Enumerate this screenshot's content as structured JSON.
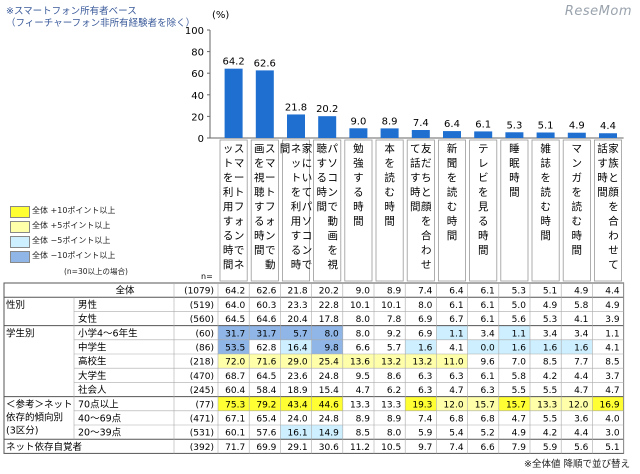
{
  "header": {
    "note": "※スマートフォン所有者ベース\n（フィーチャーフォン非所有経験者を除く）",
    "logo": "ReseMom",
    "footer": "※全体値 降順で並び替え"
  },
  "legend": {
    "items": [
      {
        "label": "全体 +10ポイント以上",
        "color": "#ffff33"
      },
      {
        "label": "全体 +5ポイント以上",
        "color": "#ffffaa"
      },
      {
        "label": "全体 −5ポイント以上",
        "color": "#cdefff"
      },
      {
        "label": "全体 −10ポイント以上",
        "color": "#8fb6e6"
      }
    ],
    "note": "(n=30以上の場合)"
  },
  "table": {
    "n_label": "n=",
    "groups": [
      {
        "label": "",
        "rows": [
          0
        ]
      },
      {
        "label": "性別",
        "rows": [
          1,
          2
        ]
      },
      {
        "label": "学生別",
        "rows": [
          3,
          4,
          5,
          6,
          7
        ]
      },
      {
        "label": "＜参考＞ネット\n依存的傾向別\n(3区分)",
        "rows": [
          8,
          9,
          10
        ]
      },
      {
        "label": "ネット依存自覚者",
        "rows": [
          11
        ]
      }
    ],
    "rows": [
      {
        "label": "全体",
        "n": "(1079)",
        "values": [
          "64.2",
          "62.6",
          "21.8",
          "20.2",
          "9.0",
          "8.9",
          "7.4",
          "6.4",
          "6.1",
          "5.3",
          "5.1",
          "4.9",
          "4.4"
        ]
      },
      {
        "label": "男性",
        "n": "(519)",
        "values": [
          "64.0",
          "60.3",
          "23.3",
          "22.8",
          "10.1",
          "10.1",
          "8.0",
          "6.1",
          "6.1",
          "5.0",
          "4.9",
          "5.8",
          "4.9"
        ]
      },
      {
        "label": "女性",
        "n": "(560)",
        "values": [
          "64.5",
          "64.6",
          "20.4",
          "17.8",
          "8.0",
          "7.8",
          "6.9",
          "6.7",
          "6.1",
          "5.6",
          "5.3",
          "4.1",
          "3.9"
        ]
      },
      {
        "label": "小学4〜6年生",
        "n": "(60)",
        "values": [
          "31.7",
          "31.7",
          "5.7",
          "8.0",
          "8.0",
          "9.2",
          "6.9",
          "1.1",
          "3.4",
          "1.1",
          "3.4",
          "3.4",
          "1.1"
        ]
      },
      {
        "label": "中学生",
        "n": "(86)",
        "values": [
          "53.5",
          "62.8",
          "16.4",
          "9.8",
          "6.6",
          "5.7",
          "1.6",
          "4.1",
          "0.0",
          "1.6",
          "1.6",
          "1.6",
          "4.1"
        ]
      },
      {
        "label": "高校生",
        "n": "(218)",
        "values": [
          "72.0",
          "71.6",
          "29.0",
          "25.4",
          "13.6",
          "13.2",
          "13.2",
          "11.0",
          "9.6",
          "7.0",
          "8.5",
          "7.7",
          "8.5"
        ]
      },
      {
        "label": "大学生",
        "n": "(470)",
        "values": [
          "68.7",
          "64.5",
          "23.6",
          "24.8",
          "9.5",
          "8.6",
          "6.3",
          "6.3",
          "6.1",
          "5.8",
          "4.2",
          "4.4",
          "3.7"
        ]
      },
      {
        "label": "社会人",
        "n": "(245)",
        "values": [
          "60.4",
          "58.4",
          "18.9",
          "15.4",
          "4.7",
          "6.2",
          "6.3",
          "4.7",
          "6.3",
          "5.5",
          "5.5",
          "4.7",
          "4.7"
        ]
      },
      {
        "label": "70点以上",
        "n": "(77)",
        "values": [
          "75.3",
          "79.2",
          "43.4",
          "44.6",
          "13.3",
          "13.3",
          "19.3",
          "12.0",
          "15.7",
          "15.7",
          "13.3",
          "12.0",
          "16.9"
        ]
      },
      {
        "label": "40〜69点",
        "n": "(471)",
        "values": [
          "67.1",
          "65.4",
          "24.0",
          "24.8",
          "8.9",
          "8.9",
          "7.4",
          "6.8",
          "6.8",
          "4.7",
          "5.5",
          "3.6",
          "4.0"
        ]
      },
      {
        "label": "20〜39点",
        "n": "(531)",
        "values": [
          "60.1",
          "57.6",
          "16.1",
          "14.9",
          "8.5",
          "8.0",
          "5.9",
          "5.4",
          "5.2",
          "4.9",
          "4.2",
          "4.4",
          "3.0"
        ]
      },
      {
        "label": "",
        "n": "(392)",
        "values": [
          "71.7",
          "69.9",
          "29.1",
          "30.6",
          "11.2",
          "10.5",
          "9.7",
          "7.4",
          "6.6",
          "7.9",
          "5.9",
          "5.6",
          "5.1"
        ]
      }
    ],
    "highlight": [
      [
        null,
        null,
        null,
        null,
        null,
        null,
        null,
        null,
        null,
        null,
        null,
        null,
        null
      ],
      [
        null,
        null,
        null,
        null,
        null,
        null,
        null,
        null,
        null,
        null,
        null,
        null,
        null
      ],
      [
        null,
        null,
        null,
        null,
        null,
        null,
        null,
        null,
        null,
        null,
        null,
        null,
        null
      ],
      [
        "m10",
        "m10",
        "m10",
        "m10",
        null,
        null,
        null,
        "m5",
        null,
        "m5",
        null,
        null,
        null
      ],
      [
        "m10",
        null,
        "m5",
        "m10",
        null,
        null,
        "m5",
        null,
        "m5",
        "m5",
        "m5",
        "m5",
        null
      ],
      [
        "p5",
        "p5",
        "p5",
        "p5",
        "p5",
        "p5",
        "p5",
        "p5",
        null,
        null,
        null,
        null,
        null
      ],
      [
        null,
        null,
        null,
        null,
        null,
        null,
        null,
        null,
        null,
        null,
        null,
        null,
        null
      ],
      [
        null,
        null,
        null,
        null,
        null,
        null,
        null,
        null,
        null,
        null,
        null,
        null,
        null
      ],
      [
        "p10",
        "p10",
        "p10",
        "p10",
        null,
        null,
        "p10",
        "p5",
        "p5",
        "p10",
        "p5",
        "p5",
        "p10"
      ],
      [
        null,
        null,
        null,
        null,
        null,
        null,
        null,
        null,
        null,
        null,
        null,
        null,
        null
      ],
      [
        null,
        null,
        "m5",
        "m5",
        null,
        null,
        null,
        null,
        null,
        null,
        null,
        null,
        null
      ],
      [
        null,
        null,
        null,
        null,
        null,
        null,
        null,
        null,
        null,
        null,
        null,
        null,
        null
      ]
    ],
    "highlight_colors": {
      "p10": "#ffff33",
      "p5": "#ffffaa",
      "m5": "#cdefff",
      "m10": "#8fb6e6"
    }
  },
  "chart_data": {
    "type": "bar",
    "ylabel": "(%)",
    "ylim": [
      0,
      100
    ],
    "yticks": [
      0,
      20,
      40,
      60,
      80,
      100
    ],
    "bar_color": "#1f6fd1",
    "categories": [
      "スマートフォンでネットを利用する時間",
      "スマートフォンで動画を視聴する時間",
      "家にいてパソコンでネットを利用する時間",
      "パソコンで動画を視聴する時間",
      "勉強する時間",
      "本を読む時間",
      "友だちと顔を合わせて話す時間",
      "新聞を読む時間",
      "テレビを見る時間",
      "睡眠時間",
      "雑誌を読む時間",
      "マンガを読む時間",
      "家族と顔を合わせて話す時間"
    ],
    "values": [
      64.2,
      62.6,
      21.8,
      20.2,
      9.0,
      8.9,
      7.4,
      6.4,
      6.1,
      5.3,
      5.1,
      4.9,
      4.4
    ],
    "data_labels": [
      "64.2",
      "62.6",
      "21.8",
      "20.2",
      "9.0",
      "8.9",
      "7.4",
      "6.4",
      "6.1",
      "5.3",
      "5.1",
      "4.9",
      "4.4"
    ]
  }
}
